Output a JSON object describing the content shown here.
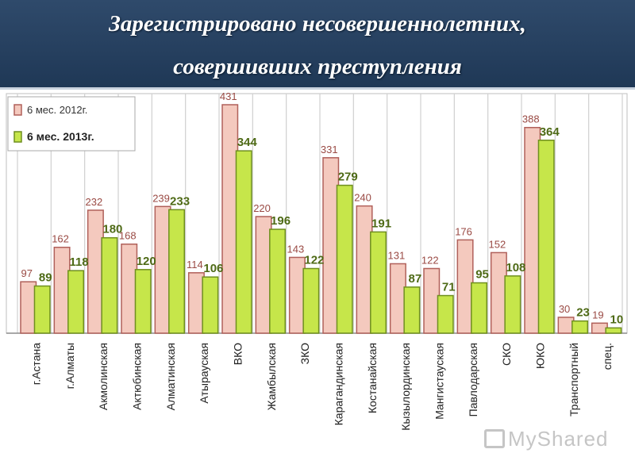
{
  "header": {
    "title_line1": "Зарегистрировано несовершеннолетних,",
    "title_line2": "совершивших преступления"
  },
  "watermark": {
    "text": "MyShared"
  },
  "colors": {
    "series_2012_fill": "#f4c9be",
    "series_2012_stroke": "#b0605a",
    "series_2013_fill": "#c6e64a",
    "series_2013_stroke": "#6f8f1f",
    "label_2012": "#9a4a44",
    "label_2013": "#4e6a16"
  },
  "chart_data": {
    "type": "bar",
    "categories": [
      "г.Астана",
      "г.Алматы",
      "Акмолинская",
      "Актюбинская",
      "Алматинская",
      "Атырауская",
      "ВКО",
      "Жамбылская",
      "ЗКО",
      "Карагандинская",
      "Костанайская",
      "Кызылординская",
      "Мангистауская",
      "Павлодарская",
      "СКО",
      "ЮКО",
      "Транспортный",
      "спец."
    ],
    "series": [
      {
        "name": "6 мес. 2012г.",
        "values": [
          97,
          162,
          232,
          168,
          239,
          114,
          431,
          220,
          143,
          331,
          240,
          131,
          122,
          176,
          152,
          388,
          30,
          19
        ]
      },
      {
        "name": "6 мес. 2013г.",
        "values": [
          89,
          118,
          180,
          120,
          233,
          106,
          344,
          196,
          122,
          279,
          191,
          87,
          71,
          95,
          108,
          364,
          23,
          10
        ]
      }
    ],
    "ylim": [
      0,
      450
    ],
    "grid": "vertical",
    "legend": "top-left"
  }
}
